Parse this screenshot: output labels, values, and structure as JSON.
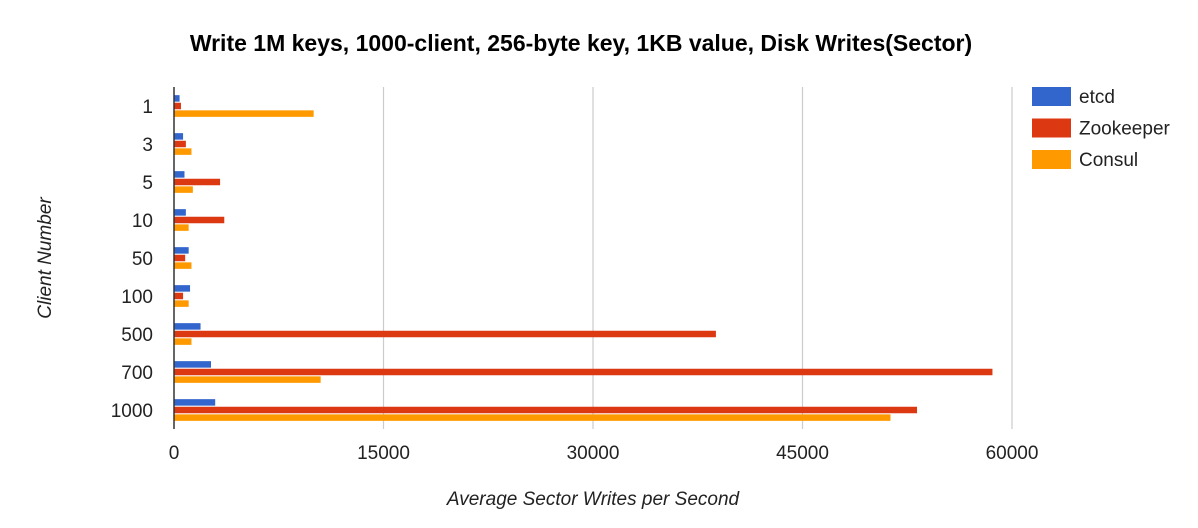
{
  "chart_data": {
    "type": "bar",
    "orientation": "horizontal",
    "title": "Write 1M keys, 1000-client, 256-byte key, 1KB value, Disk Writes(Sector)",
    "xlabel": "Average Sector Writes per Second",
    "ylabel": "Client Number",
    "categories": [
      "1",
      "3",
      "5",
      "10",
      "50",
      "100",
      "500",
      "700",
      "1000"
    ],
    "xlim": [
      0,
      60000
    ],
    "x_ticks": [
      "0",
      "15000",
      "30000",
      "45000",
      "60000"
    ],
    "grid": true,
    "legend_position": "right",
    "series": [
      {
        "name": "etcd",
        "color": "#3366cc",
        "values": [
          400,
          650,
          750,
          850,
          1050,
          1150,
          1900,
          2650,
          2950
        ]
      },
      {
        "name": "Zookeeper",
        "color": "#dc3912",
        "values": [
          500,
          850,
          3300,
          3600,
          800,
          650,
          38800,
          58600,
          53200
        ]
      },
      {
        "name": "Consul",
        "color": "#ff9900",
        "values": [
          10000,
          1250,
          1350,
          1050,
          1250,
          1050,
          1250,
          10500,
          51300
        ]
      }
    ]
  }
}
